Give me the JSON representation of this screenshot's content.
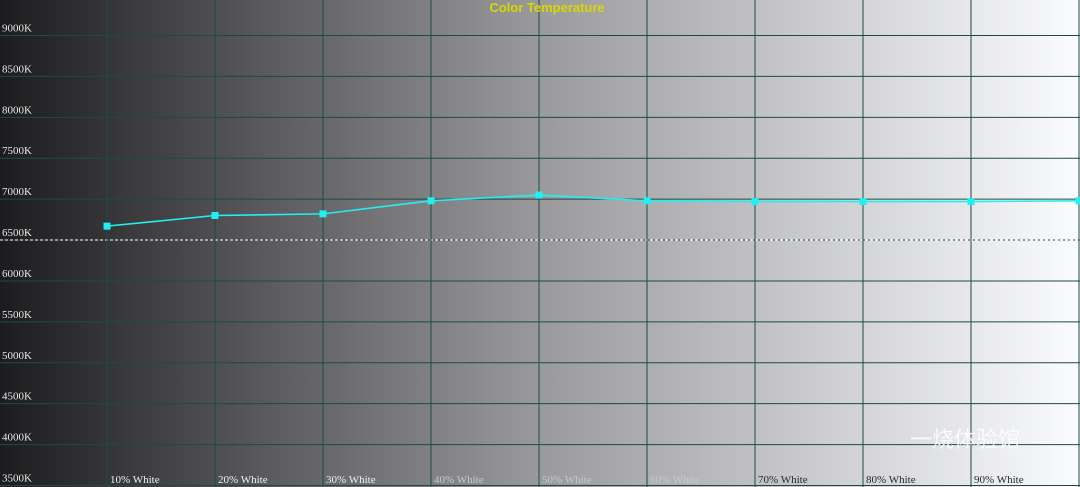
{
  "chart_data": {
    "type": "line",
    "title": "Color Temperature",
    "categories": [
      "10% White",
      "20% White",
      "30% White",
      "40% White",
      "50% White",
      "60% White",
      "70% White",
      "80% White",
      "90% White",
      null
    ],
    "series": [
      {
        "name": "Color Temperature",
        "color": "#20f0f0",
        "values": [
          6670,
          6800,
          6820,
          6980,
          7050,
          6980,
          6970,
          6970,
          6970,
          6980
        ]
      }
    ],
    "ylim": [
      3500,
      9000
    ],
    "yticks": [
      {
        "value": 3500,
        "label": "3500K"
      },
      {
        "value": 4000,
        "label": "4000K"
      },
      {
        "value": 4500,
        "label": "4500K"
      },
      {
        "value": 5000,
        "label": "5000K"
      },
      {
        "value": 5500,
        "label": "5500K"
      },
      {
        "value": 6000,
        "label": "6000K"
      },
      {
        "value": 6500,
        "label": "6500K"
      },
      {
        "value": 7000,
        "label": "7000K"
      },
      {
        "value": 7500,
        "label": "7500K"
      },
      {
        "value": 8000,
        "label": "8000K"
      },
      {
        "value": 8500,
        "label": "8500K"
      },
      {
        "value": 9000,
        "label": "9000K"
      }
    ],
    "reference_line": 6500,
    "grid": true,
    "watermark": "一烧体验馆"
  }
}
